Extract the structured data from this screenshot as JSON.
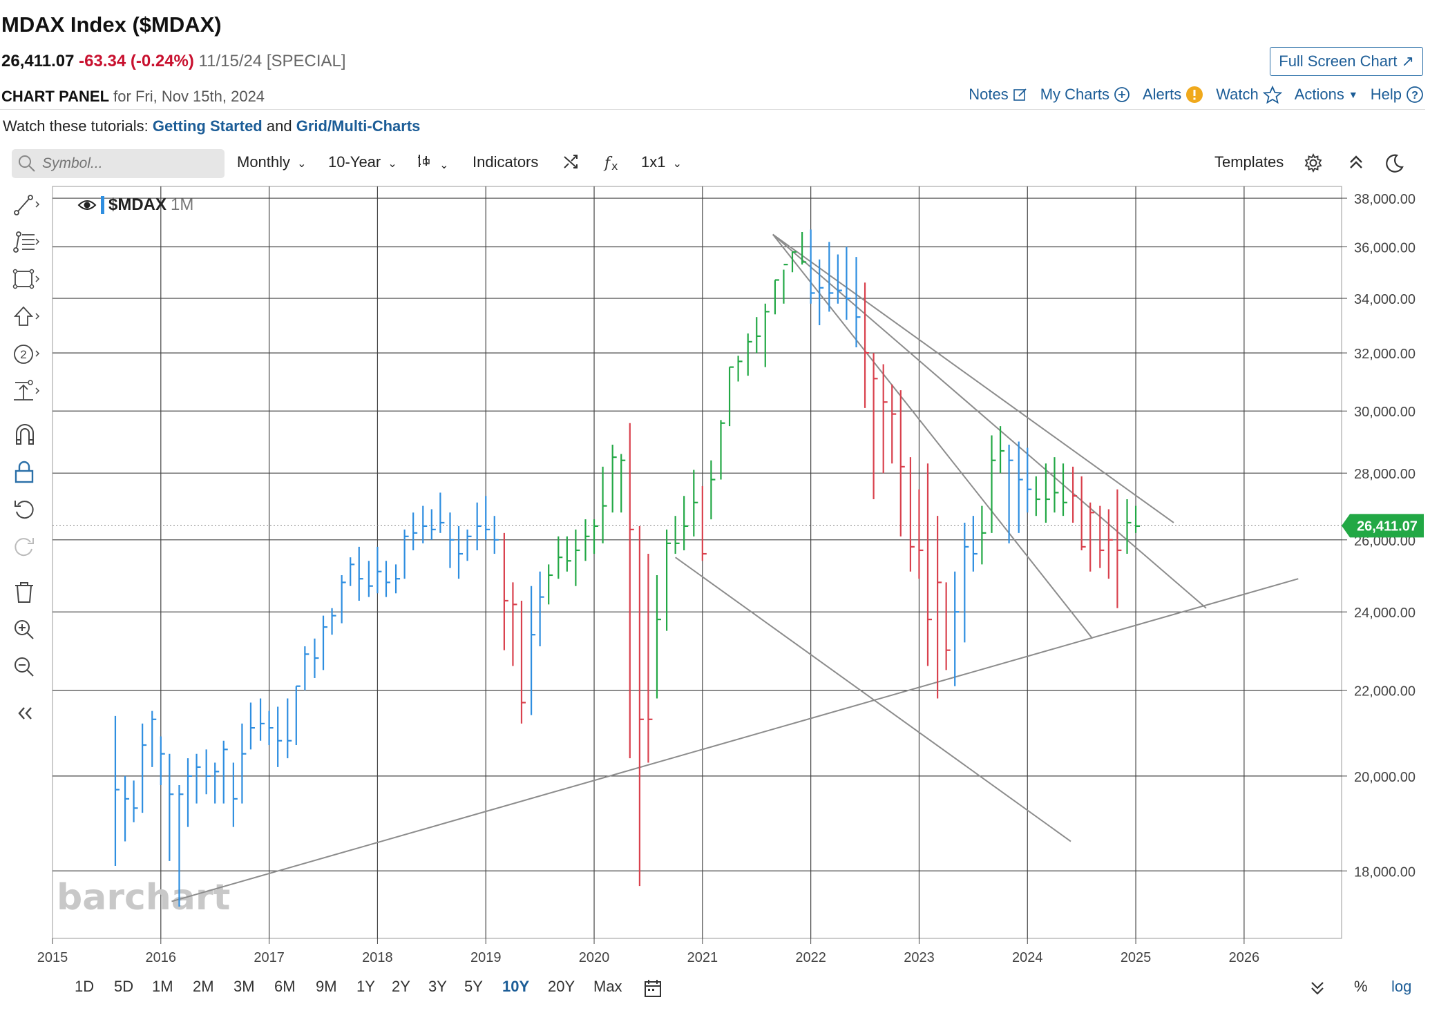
{
  "header": {
    "title": "MDAX Index ($MDAX)",
    "last": "26,411.07",
    "change": "-63.34 (-0.24%)",
    "date_meta": "11/15/24 [SPECIAL]",
    "fullscreen_label": "Full Screen Chart"
  },
  "panel": {
    "label": "CHART PANEL",
    "date_text": "for Fri, Nov 15th, 2024"
  },
  "top_links": {
    "notes": "Notes",
    "my_charts": "My Charts",
    "alerts": "Alerts",
    "watch": "Watch",
    "actions": "Actions",
    "help": "Help"
  },
  "tutorials": {
    "prefix": "Watch these tutorials:",
    "link1": "Getting Started",
    "and": "and",
    "link2": "Grid/Multi-Charts"
  },
  "toolbar": {
    "search_placeholder": "Symbol...",
    "period": "Monthly",
    "range": "10-Year",
    "indicators": "Indicators",
    "layout": "1x1",
    "templates": "Templates"
  },
  "chart_label": {
    "symbol": "$MDAX",
    "interval": "1M"
  },
  "watermark": "barchart",
  "price_badge": "26,411.07",
  "range_bar": {
    "buttons": [
      "1D",
      "5D",
      "1M",
      "2M",
      "3M",
      "6M",
      "9M",
      "1Y",
      "2Y",
      "3Y",
      "5Y",
      "10Y",
      "20Y",
      "Max"
    ],
    "active": "10Y",
    "percent": "%",
    "log": "log"
  },
  "colors": {
    "up": "#22a845",
    "down": "#d9414d",
    "neutral": "#2e8ee0",
    "link": "#1c5d97",
    "badge": "#22a845",
    "trendline": "#8c8c8c"
  },
  "icons": [
    "search-icon",
    "chevron-down-icon",
    "chart-type-icon",
    "compare-icon",
    "fx-icon",
    "settings-icon",
    "collapse-icon",
    "dark-mode-icon",
    "eye-icon",
    "calendar-icon",
    "double-chevron-down-icon",
    "note-edit-icon",
    "plus-circle-icon",
    "alert-icon",
    "star-icon",
    "help-icon"
  ],
  "chart_data": {
    "type": "ohlc",
    "interval": "monthly",
    "log_scale": true,
    "y_axis": {
      "ticks": [
        18000,
        20000,
        22000,
        24000,
        26000,
        28000,
        30000,
        32000,
        34000,
        36000,
        38000
      ],
      "tick_labels": [
        "18,000.00",
        "20,000.00",
        "22,000.00",
        "24,000.00",
        "26,000.00",
        "28,000.00",
        "30,000.00",
        "32,000.00",
        "34,000.00",
        "36,000.00",
        "38,000.00"
      ],
      "range": [
        16700,
        38500
      ]
    },
    "x_axis": {
      "tick_labels": [
        "2015",
        "2016",
        "2017",
        "2018",
        "2019",
        "2020",
        "2021",
        "2022",
        "2023",
        "2024",
        "2025",
        "2026"
      ],
      "range": [
        2015.0,
        2026.9
      ]
    },
    "last_value": 26411.07,
    "bars": [
      [
        2015.58,
        21380,
        18100,
        19700,
        "neutral"
      ],
      [
        2015.67,
        20000,
        18600,
        19500,
        "neutral"
      ],
      [
        2015.75,
        19900,
        19000,
        19300,
        "neutral"
      ],
      [
        2015.83,
        21200,
        19200,
        20700,
        "neutral"
      ],
      [
        2015.92,
        21500,
        20200,
        21300,
        "neutral"
      ],
      [
        2016.0,
        20900,
        19800,
        20500,
        "neutral"
      ],
      [
        2016.08,
        20500,
        18200,
        19600,
        "neutral"
      ],
      [
        2016.17,
        19800,
        17300,
        19600,
        "neutral"
      ],
      [
        2016.25,
        20400,
        18900,
        20000,
        "neutral"
      ],
      [
        2016.33,
        20500,
        19400,
        20200,
        "neutral"
      ],
      [
        2016.42,
        20600,
        19600,
        20000,
        "neutral"
      ],
      [
        2016.5,
        20300,
        19400,
        20100,
        "neutral"
      ],
      [
        2016.58,
        20800,
        19400,
        20600,
        "neutral"
      ],
      [
        2016.67,
        20300,
        18900,
        19500,
        "neutral"
      ],
      [
        2016.75,
        21200,
        19400,
        20500,
        "neutral"
      ],
      [
        2016.83,
        21700,
        20600,
        21100,
        "neutral"
      ],
      [
        2016.92,
        21800,
        20800,
        21200,
        "neutral"
      ],
      [
        2017.0,
        21500,
        20700,
        21100,
        "neutral"
      ],
      [
        2017.08,
        21600,
        20200,
        20800,
        "neutral"
      ],
      [
        2017.17,
        21800,
        20400,
        20800,
        "neutral"
      ],
      [
        2017.25,
        22100,
        20700,
        22100,
        "neutral"
      ],
      [
        2017.33,
        23100,
        22000,
        22900,
        "neutral"
      ],
      [
        2017.42,
        23300,
        22300,
        22800,
        "neutral"
      ],
      [
        2017.5,
        23900,
        22500,
        23600,
        "neutral"
      ],
      [
        2017.58,
        24100,
        23400,
        23900,
        "neutral"
      ],
      [
        2017.67,
        25000,
        23700,
        24800,
        "neutral"
      ],
      [
        2017.75,
        25500,
        24700,
        25300,
        "neutral"
      ],
      [
        2017.83,
        25800,
        24300,
        24900,
        "neutral"
      ],
      [
        2017.92,
        25400,
        24400,
        24700,
        "neutral"
      ],
      [
        2018.0,
        25800,
        24500,
        25100,
        "neutral"
      ],
      [
        2018.08,
        25400,
        24400,
        24800,
        "neutral"
      ],
      [
        2018.17,
        25300,
        24500,
        24900,
        "neutral"
      ],
      [
        2018.25,
        26300,
        24900,
        26100,
        "neutral"
      ],
      [
        2018.33,
        26800,
        25700,
        26200,
        "neutral"
      ],
      [
        2018.42,
        27000,
        25900,
        26400,
        "neutral"
      ],
      [
        2018.5,
        26900,
        26000,
        26300,
        "neutral"
      ],
      [
        2018.58,
        27400,
        26200,
        26500,
        "neutral"
      ],
      [
        2018.67,
        26800,
        25200,
        26000,
        "neutral"
      ],
      [
        2018.75,
        26400,
        24900,
        25600,
        "neutral"
      ],
      [
        2018.83,
        26300,
        25400,
        26100,
        "neutral"
      ],
      [
        2018.92,
        27100,
        25700,
        26400,
        "neutral"
      ],
      [
        2019.0,
        27300,
        26000,
        26300,
        "neutral"
      ],
      [
        2019.08,
        26700,
        25600,
        26000,
        "neutral"
      ],
      [
        2019.17,
        26200,
        23000,
        24300,
        "down"
      ],
      [
        2019.25,
        24800,
        22600,
        24200,
        "down"
      ],
      [
        2019.33,
        24300,
        21200,
        21700,
        "down"
      ],
      [
        2019.42,
        24700,
        21400,
        23400,
        "neutral"
      ],
      [
        2019.5,
        25100,
        23100,
        24400,
        "neutral"
      ],
      [
        2019.58,
        25300,
        24200,
        25000,
        "up"
      ],
      [
        2019.67,
        26100,
        24900,
        25500,
        "up"
      ],
      [
        2019.75,
        26100,
        25100,
        25400,
        "up"
      ],
      [
        2019.83,
        26300,
        24700,
        25700,
        "up"
      ],
      [
        2019.92,
        26600,
        25400,
        26100,
        "up"
      ],
      [
        2020.0,
        26600,
        25600,
        26400,
        "up"
      ],
      [
        2020.08,
        28200,
        25900,
        27000,
        "up"
      ],
      [
        2020.17,
        28900,
        26800,
        28500,
        "up"
      ],
      [
        2020.25,
        28600,
        26800,
        28400,
        "up"
      ],
      [
        2020.33,
        29600,
        20400,
        26300,
        "down"
      ],
      [
        2020.42,
        26400,
        17700,
        21300,
        "down"
      ],
      [
        2020.5,
        25600,
        20300,
        21300,
        "down"
      ],
      [
        2020.58,
        25000,
        21800,
        23800,
        "up"
      ],
      [
        2020.67,
        26300,
        23500,
        25900,
        "up"
      ],
      [
        2020.75,
        26700,
        25600,
        25900,
        "up"
      ],
      [
        2020.83,
        27300,
        25700,
        26400,
        "up"
      ],
      [
        2020.92,
        28100,
        26100,
        27100,
        "up"
      ],
      [
        2021.0,
        27600,
        25400,
        25600,
        "down"
      ],
      [
        2021.08,
        28400,
        26600,
        27800,
        "up"
      ],
      [
        2021.17,
        29700,
        27800,
        29600,
        "up"
      ],
      [
        2021.25,
        31500,
        29500,
        31500,
        "up"
      ],
      [
        2021.33,
        31900,
        31000,
        31700,
        "up"
      ],
      [
        2021.42,
        32700,
        31200,
        32400,
        "up"
      ],
      [
        2021.5,
        33300,
        32000,
        32600,
        "up"
      ],
      [
        2021.58,
        33800,
        31500,
        33500,
        "up"
      ],
      [
        2021.67,
        34700,
        33400,
        34700,
        "up"
      ],
      [
        2021.75,
        35100,
        33800,
        35300,
        "up"
      ],
      [
        2021.83,
        35800,
        35000,
        35800,
        "up"
      ],
      [
        2021.92,
        36600,
        35300,
        35400,
        "up"
      ],
      [
        2022.0,
        36700,
        33800,
        34200,
        "neutral"
      ],
      [
        2022.08,
        35500,
        33000,
        34400,
        "neutral"
      ],
      [
        2022.17,
        36200,
        33500,
        34200,
        "neutral"
      ],
      [
        2022.25,
        35700,
        33800,
        34300,
        "neutral"
      ],
      [
        2022.33,
        36000,
        33200,
        34000,
        "neutral"
      ],
      [
        2022.42,
        35600,
        32200,
        33300,
        "neutral"
      ],
      [
        2022.5,
        34600,
        30100,
        32000,
        "down"
      ],
      [
        2022.58,
        32000,
        27200,
        31100,
        "down"
      ],
      [
        2022.67,
        31600,
        28000,
        30300,
        "down"
      ],
      [
        2022.75,
        30900,
        28300,
        29900,
        "down"
      ],
      [
        2022.83,
        30700,
        26100,
        28200,
        "down"
      ],
      [
        2022.92,
        28500,
        25100,
        25800,
        "down"
      ],
      [
        2023.0,
        27500,
        24900,
        25700,
        "down"
      ],
      [
        2023.08,
        28300,
        22600,
        23800,
        "down"
      ],
      [
        2023.17,
        26700,
        21800,
        24800,
        "down"
      ],
      [
        2023.25,
        24800,
        22500,
        23000,
        "down"
      ],
      [
        2023.33,
        25100,
        22100,
        24000,
        "neutral"
      ],
      [
        2023.42,
        26500,
        23200,
        25800,
        "neutral"
      ],
      [
        2023.5,
        26700,
        25100,
        25600,
        "neutral"
      ],
      [
        2023.58,
        27000,
        25300,
        26200,
        "up"
      ],
      [
        2023.67,
        29200,
        26200,
        28400,
        "up"
      ],
      [
        2023.75,
        29500,
        28000,
        28700,
        "up"
      ],
      [
        2023.83,
        28900,
        25900,
        28400,
        "neutral"
      ],
      [
        2023.92,
        29000,
        26200,
        27800,
        "neutral"
      ],
      [
        2024.0,
        28800,
        26800,
        27500,
        "neutral"
      ],
      [
        2024.08,
        27900,
        26700,
        27200,
        "up"
      ],
      [
        2024.17,
        28300,
        26500,
        27200,
        "up"
      ],
      [
        2024.25,
        28500,
        26800,
        27400,
        "up"
      ],
      [
        2024.33,
        28300,
        26700,
        27100,
        "up"
      ],
      [
        2024.42,
        28200,
        26500,
        27300,
        "down"
      ],
      [
        2024.5,
        27900,
        25700,
        25800,
        "down"
      ],
      [
        2024.58,
        27100,
        25100,
        26800,
        "down"
      ],
      [
        2024.67,
        27000,
        25200,
        25700,
        "down"
      ],
      [
        2024.75,
        26900,
        24900,
        26000,
        "down"
      ],
      [
        2024.83,
        27500,
        24100,
        25700,
        "down"
      ],
      [
        2024.92,
        27200,
        25600,
        26500,
        "up"
      ],
      [
        2025.0,
        27000,
        26200,
        26400,
        "up"
      ]
    ],
    "trendlines": [
      [
        [
          2016.1,
          17400
        ],
        [
          2026.5,
          24900
        ]
      ],
      [
        [
          2021.65,
          36500
        ],
        [
          2025.35,
          26500
        ]
      ],
      [
        [
          2021.65,
          36500
        ],
        [
          2025.65,
          24100
        ]
      ],
      [
        [
          2021.65,
          36500
        ],
        [
          2024.6,
          23300
        ]
      ],
      [
        [
          2020.75,
          25500
        ],
        [
          2024.4,
          18600
        ]
      ]
    ]
  }
}
